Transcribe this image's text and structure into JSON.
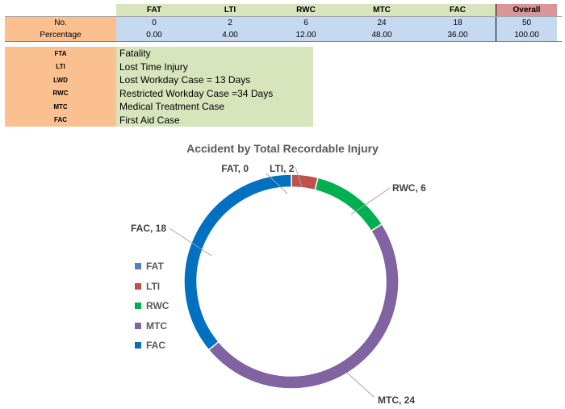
{
  "summary_table": {
    "headers": [
      "FAT",
      "LTI",
      "RWC",
      "MTC",
      "FAC",
      "Overall"
    ],
    "rows": [
      {
        "label": "No.",
        "values": [
          "0",
          "2",
          "6",
          "24",
          "18",
          "50"
        ]
      },
      {
        "label": "Percentage",
        "values": [
          "0.00",
          "4.00",
          "12.00",
          "48.00",
          "36.00",
          "100.00"
        ]
      }
    ]
  },
  "codes": [
    {
      "code": "FTA",
      "description": "Fatality"
    },
    {
      "code": "LTI",
      "description": "Lost Time Injury"
    },
    {
      "code": "LWD",
      "description": "Lost Workday Case = 13 Days"
    },
    {
      "code": "RWC",
      "description": "Restricted Workday Case =34 Days"
    },
    {
      "code": "MTC",
      "description": "Medical Treatment Case"
    },
    {
      "code": "FAC",
      "description": "First Aid Case"
    }
  ],
  "colors": {
    "FAT": "#4f81bd",
    "LTI": "#c0504d",
    "RWC": "#00b050",
    "MTC": "#8064a2",
    "FAC": "#0070c0"
  },
  "chart_data": {
    "type": "pie",
    "variant": "doughnut",
    "title": "Accident by Total Recordable Injury",
    "categories": [
      "FAT",
      "LTI",
      "RWC",
      "MTC",
      "FAC"
    ],
    "values": [
      0,
      2,
      6,
      24,
      18
    ],
    "data_labels": [
      "FAT, 0",
      "LTI, 2",
      "RWC, 6",
      "MTC, 24",
      "FAC, 18"
    ],
    "legend_position": "left",
    "start_angle_deg": 0
  }
}
